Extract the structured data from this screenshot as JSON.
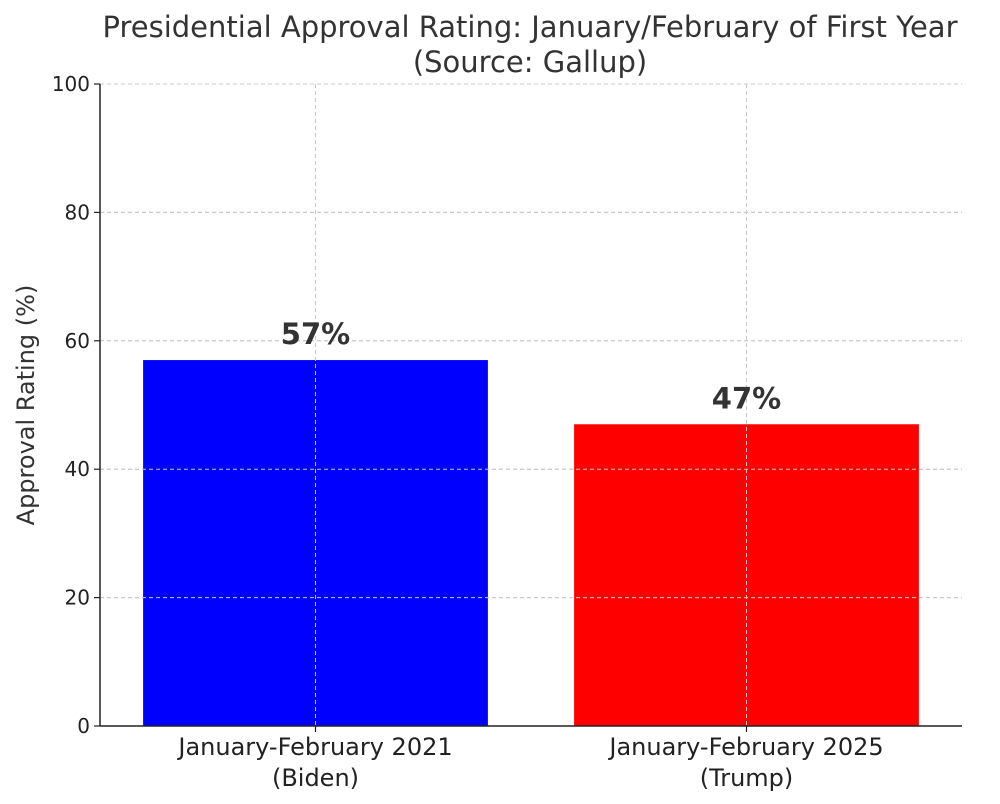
{
  "chart_data": {
    "type": "bar",
    "title": [
      "Presidential Approval Rating: January/February of First Year",
      "(Source: Gallup)"
    ],
    "xlabel": "",
    "ylabel": "Approval Rating (%)",
    "ylim": [
      0,
      100
    ],
    "yticks": [
      0,
      20,
      40,
      60,
      80,
      100
    ],
    "grid": true,
    "categories": [
      [
        "January-February 2021",
        "(Biden)"
      ],
      [
        "January-February 2025",
        "(Trump)"
      ]
    ],
    "values": [
      57,
      47
    ],
    "data_labels": [
      "57%",
      "47%"
    ],
    "colors": [
      "#0000ff",
      "#ff0000"
    ]
  }
}
